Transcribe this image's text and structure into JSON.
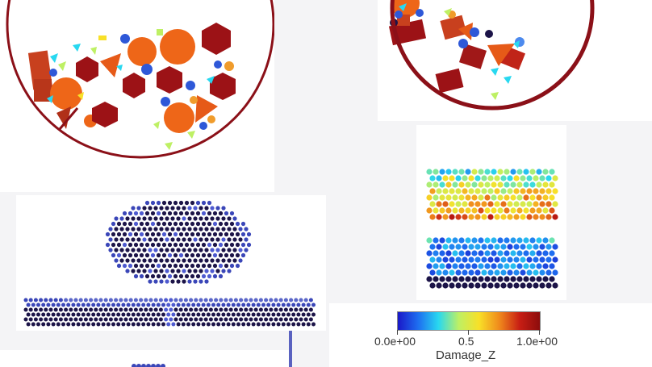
{
  "colorbar": {
    "title": "Damage_Z",
    "ticks": [
      "0.0e+00",
      "0.5",
      "1.0e+00"
    ],
    "colors": [
      "#1a18c8",
      "#1e6ef0",
      "#28d8f0",
      "#bef064",
      "#f8e028",
      "#f08a1c",
      "#c81e14",
      "#8c0c0c"
    ]
  },
  "palette": {
    "drum": "#8b1018",
    "large_disk": "#ee6618",
    "hexagon": "#9c1216",
    "triangle": "#e65a18",
    "small_disk": "#2e58d8",
    "dark_particle": "#1c1448",
    "blue_particle": "#3a46b8"
  },
  "icons": {
    "drum_left": "rotating-drum-icon",
    "drum_right": "rotating-drum-icon"
  }
}
